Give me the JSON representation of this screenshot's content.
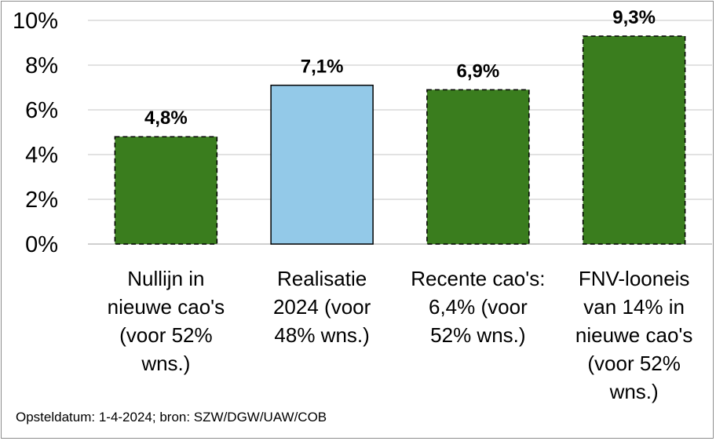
{
  "chart_data": {
    "type": "bar",
    "categories": [
      [
        "Nullijn in",
        "nieuwe cao's",
        "(voor 52%",
        "wns.)"
      ],
      [
        "Realisatie",
        "2024 (voor",
        "48% wns.)"
      ],
      [
        "Recente cao's:",
        "6,4% (voor",
        "52% wns.)"
      ],
      [
        "FNV-looneis",
        "van 14% in",
        "nieuwe cao's",
        "(voor 52%",
        "wns.)"
      ]
    ],
    "values": [
      4.8,
      7.1,
      6.9,
      9.3
    ],
    "data_labels": [
      "4,8%",
      "7,1%",
      "6,9%",
      "9,3%"
    ],
    "bar_colors": [
      "#3a7d1e",
      "#93c9e8",
      "#3a7d1e",
      "#3a7d1e"
    ],
    "bar_borders": [
      "dashed",
      "solid",
      "dashed",
      "dashed"
    ],
    "ylim": [
      0,
      10
    ],
    "yticks": [
      "0%",
      "2%",
      "4%",
      "6%",
      "8%",
      "10%"
    ],
    "grid": true,
    "title": "",
    "xlabel": "",
    "ylabel": ""
  },
  "footnote": "Opsteldatum: 1-4-2024; bron: SZW/DGW/UAW/COB"
}
